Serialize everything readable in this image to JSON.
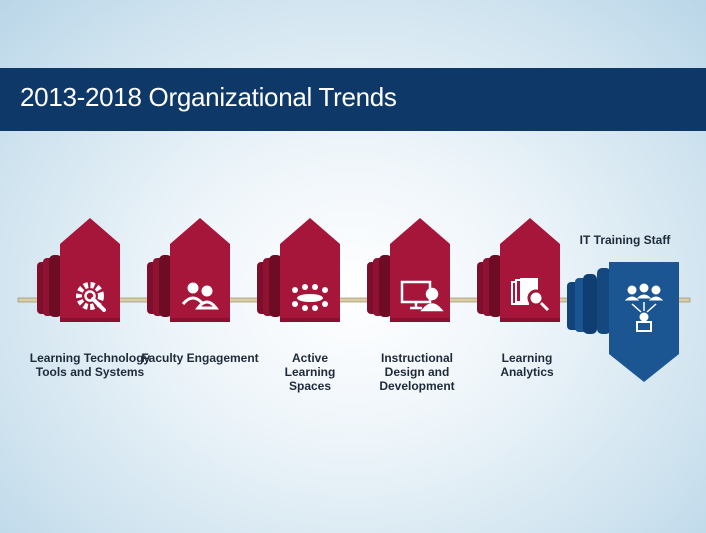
{
  "title": "2013-2018 Organizational Trends",
  "colors": {
    "trend": "#a6153a",
    "staff": "#1b5592",
    "header": "#0d3868"
  },
  "trends": [
    {
      "label": "Learning Technology Tools and Systems",
      "icon": "gear-wrench-icon"
    },
    {
      "label": "Faculty Engagement",
      "icon": "people-icon"
    },
    {
      "label": "Active Learning Spaces",
      "icon": "group-table-icon"
    },
    {
      "label": "Instructional Design and Development",
      "icon": "computer-user-icon"
    },
    {
      "label": "Learning Analytics",
      "icon": "report-magnifier-icon"
    }
  ],
  "staff": {
    "label": "IT Training Staff",
    "icon": "network-people-icon"
  }
}
